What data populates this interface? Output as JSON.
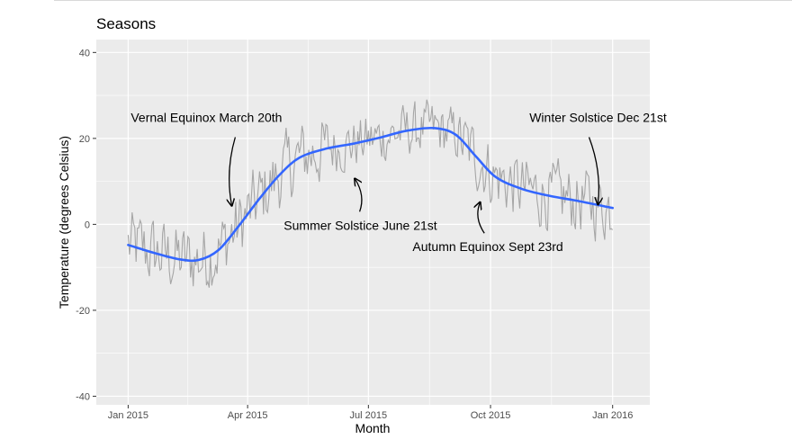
{
  "chart_data": {
    "type": "line",
    "title": "Seasons",
    "xlabel": "Month",
    "ylabel": "Temperature (degrees Celsius)",
    "xlim": [
      "2014-12-08",
      "2016-01-29"
    ],
    "ylim": [
      -42,
      43
    ],
    "grid": true,
    "x_ticks": [
      {
        "date": "2015-01-01",
        "label": "Jan 2015"
      },
      {
        "date": "2015-04-01",
        "label": "Apr 2015"
      },
      {
        "date": "2015-07-01",
        "label": "Jul 2015"
      },
      {
        "date": "2015-10-01",
        "label": "Oct 2015"
      },
      {
        "date": "2016-01-01",
        "label": "Jan 2016"
      }
    ],
    "y_ticks": [
      {
        "value": -40,
        "label": "-40"
      },
      {
        "value": -20,
        "label": "-20"
      },
      {
        "value": 0,
        "label": "0"
      },
      {
        "value": 20,
        "label": "20"
      },
      {
        "value": 40,
        "label": "40"
      }
    ],
    "series": [
      {
        "kind": "daily",
        "color": "#a6a6a6",
        "x": [
          "2015-01-01",
          "2016-01-01"
        ],
        "y_min": -22,
        "y_max": 33
      },
      {
        "kind": "smooth",
        "color": "#3366ff",
        "points": [
          {
            "x": "2015-01-01",
            "y": -4.8
          },
          {
            "x": "2015-01-20",
            "y": -6.6
          },
          {
            "x": "2015-02-08",
            "y": -8.1
          },
          {
            "x": "2015-02-23",
            "y": -8.3
          },
          {
            "x": "2015-03-10",
            "y": -6.0
          },
          {
            "x": "2015-03-25",
            "y": -0.5
          },
          {
            "x": "2015-04-10",
            "y": 6.0
          },
          {
            "x": "2015-04-25",
            "y": 11.5
          },
          {
            "x": "2015-05-10",
            "y": 15.5
          },
          {
            "x": "2015-05-30",
            "y": 17.6
          },
          {
            "x": "2015-06-20",
            "y": 18.8
          },
          {
            "x": "2015-07-10",
            "y": 20.2
          },
          {
            "x": "2015-07-30",
            "y": 21.8
          },
          {
            "x": "2015-08-20",
            "y": 22.4
          },
          {
            "x": "2015-09-05",
            "y": 20.8
          },
          {
            "x": "2015-09-20",
            "y": 15.8
          },
          {
            "x": "2015-10-05",
            "y": 11.0
          },
          {
            "x": "2015-10-25",
            "y": 8.2
          },
          {
            "x": "2015-11-15",
            "y": 6.6
          },
          {
            "x": "2015-12-05",
            "y": 5.5
          },
          {
            "x": "2016-01-01",
            "y": 3.8
          }
        ]
      }
    ],
    "annotations": [
      {
        "text": "Vernal Equinox March 20th",
        "x": "2015-03-01",
        "y": 24.9,
        "arrow_to": {
          "x": "2015-03-20",
          "y": 4.5
        }
      },
      {
        "text": "Summer Solstice June 21st",
        "x": "2015-06-25",
        "y": -0.2,
        "arrow_to": {
          "x": "2015-06-21",
          "y": 10.5
        }
      },
      {
        "text": "Autumn Equinox Sept 23rd",
        "x": "2015-09-29",
        "y": -5.2,
        "arrow_to": {
          "x": "2015-09-23",
          "y": 5.0
        }
      },
      {
        "text": "Winter Solstice Dec 21st",
        "x": "2015-12-21",
        "y": 24.9,
        "arrow_to": {
          "x": "2015-12-21",
          "y": 4.8
        }
      }
    ]
  }
}
